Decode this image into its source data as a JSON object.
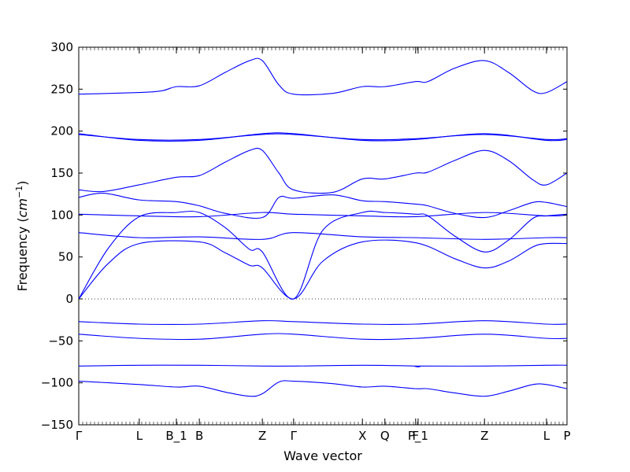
{
  "chart_data": {
    "type": "line",
    "xlabel": "Wave vector",
    "ylabel": "Frequency (cm⁻¹)",
    "ylabel_parts": {
      "prefix": "Frequency (",
      "base": "cm",
      "sup": "−1",
      "suffix": ")"
    },
    "ylim": [
      -150,
      300
    ],
    "xlim": [
      0,
      1
    ],
    "yticks": [
      300,
      250,
      200,
      150,
      100,
      50,
      0,
      -50,
      -100,
      -150
    ],
    "ytick_labels": [
      "300",
      "250",
      "200",
      "150",
      "100",
      "50",
      "0",
      "−50",
      "−100",
      "−150"
    ],
    "xticks": [
      {
        "label": "Γ",
        "x": 0.0
      },
      {
        "label": "L",
        "x": 0.124
      },
      {
        "label": "B_1",
        "x": 0.2
      },
      {
        "label": "B",
        "x": 0.247
      },
      {
        "label": "Z",
        "x": 0.376
      },
      {
        "label": "Γ",
        "x": 0.44
      },
      {
        "label": "X",
        "x": 0.581
      },
      {
        "label": "Q",
        "x": 0.627
      },
      {
        "label": "F",
        "x": 0.69
      },
      {
        "label": "P_1",
        "x": 0.695
      },
      {
        "label": "Z",
        "x": 0.831
      },
      {
        "label": "L",
        "x": 0.958
      },
      {
        "label": "P",
        "x": 1.0
      }
    ],
    "zero_line": true,
    "line_color": "#0000ff",
    "series": [
      {
        "points": [
          [
            0,
            244
          ],
          [
            0.124,
            246
          ],
          [
            0.17,
            248
          ],
          [
            0.2,
            253
          ],
          [
            0.247,
            254
          ],
          [
            0.3,
            270
          ],
          [
            0.35,
            284
          ],
          [
            0.376,
            284
          ],
          [
            0.41,
            255
          ],
          [
            0.44,
            244
          ],
          [
            0.52,
            245
          ],
          [
            0.581,
            253
          ],
          [
            0.627,
            253
          ],
          [
            0.69,
            259
          ],
          [
            0.715,
            259
          ],
          [
            0.77,
            275
          ],
          [
            0.831,
            284
          ],
          [
            0.88,
            270
          ],
          [
            0.93,
            248
          ],
          [
            0.958,
            246
          ],
          [
            1.0,
            259
          ]
        ]
      },
      {
        "points": [
          [
            0,
            197
          ],
          [
            0.124,
            189
          ],
          [
            0.247,
            189
          ],
          [
            0.376,
            197
          ],
          [
            0.44,
            197
          ],
          [
            0.581,
            189
          ],
          [
            0.69,
            190
          ],
          [
            0.831,
            197
          ],
          [
            0.958,
            189
          ],
          [
            1.0,
            190
          ]
        ]
      },
      {
        "points": [
          [
            0,
            196
          ],
          [
            0.124,
            190
          ],
          [
            0.247,
            190
          ],
          [
            0.376,
            196
          ],
          [
            0.44,
            196
          ],
          [
            0.581,
            190
          ],
          [
            0.69,
            191
          ],
          [
            0.831,
            196
          ],
          [
            0.958,
            190
          ],
          [
            1.0,
            191
          ]
        ]
      },
      {
        "points": [
          [
            0,
            130
          ],
          [
            0.05,
            128
          ],
          [
            0.124,
            136
          ],
          [
            0.2,
            145
          ],
          [
            0.247,
            147
          ],
          [
            0.3,
            163
          ],
          [
            0.35,
            177
          ],
          [
            0.376,
            177
          ],
          [
            0.41,
            150
          ],
          [
            0.44,
            130
          ],
          [
            0.52,
            127
          ],
          [
            0.581,
            143
          ],
          [
            0.627,
            143
          ],
          [
            0.69,
            150
          ],
          [
            0.715,
            151
          ],
          [
            0.77,
            165
          ],
          [
            0.831,
            177
          ],
          [
            0.88,
            165
          ],
          [
            0.93,
            142
          ],
          [
            0.958,
            136
          ],
          [
            1.0,
            150
          ]
        ]
      },
      {
        "points": [
          [
            0,
            121
          ],
          [
            0.05,
            126
          ],
          [
            0.124,
            118
          ],
          [
            0.2,
            116
          ],
          [
            0.247,
            111
          ],
          [
            0.3,
            102
          ],
          [
            0.376,
            97
          ],
          [
            0.41,
            121
          ],
          [
            0.44,
            120
          ],
          [
            0.52,
            124
          ],
          [
            0.581,
            117
          ],
          [
            0.627,
            116
          ],
          [
            0.69,
            113
          ],
          [
            0.715,
            111
          ],
          [
            0.77,
            102
          ],
          [
            0.831,
            97
          ],
          [
            0.88,
            105
          ],
          [
            0.93,
            115
          ],
          [
            0.958,
            115
          ],
          [
            1.0,
            110
          ]
        ]
      },
      {
        "points": [
          [
            0,
            0
          ],
          [
            0.06,
            60
          ],
          [
            0.124,
            98
          ],
          [
            0.2,
            103
          ],
          [
            0.247,
            103
          ],
          [
            0.3,
            85
          ],
          [
            0.35,
            59
          ],
          [
            0.376,
            56
          ],
          [
            0.44,
            0
          ],
          [
            0.5,
            82
          ],
          [
            0.581,
            103
          ],
          [
            0.627,
            103
          ],
          [
            0.69,
            101
          ],
          [
            0.715,
            99
          ],
          [
            0.77,
            75
          ],
          [
            0.831,
            56
          ],
          [
            0.88,
            70
          ],
          [
            0.93,
            96
          ],
          [
            0.958,
            99
          ],
          [
            1.0,
            101
          ]
        ]
      },
      {
        "points": [
          [
            0,
            101
          ],
          [
            0.124,
            99
          ],
          [
            0.247,
            98
          ],
          [
            0.376,
            103
          ],
          [
            0.44,
            101
          ],
          [
            0.581,
            99
          ],
          [
            0.69,
            98
          ],
          [
            0.831,
            103
          ],
          [
            0.958,
            99
          ],
          [
            1.0,
            100
          ]
        ]
      },
      {
        "points": [
          [
            0,
            0
          ],
          [
            0.06,
            42
          ],
          [
            0.124,
            66
          ],
          [
            0.247,
            68
          ],
          [
            0.3,
            55
          ],
          [
            0.35,
            40
          ],
          [
            0.376,
            37
          ],
          [
            0.44,
            0
          ],
          [
            0.5,
            45
          ],
          [
            0.581,
            68
          ],
          [
            0.69,
            67
          ],
          [
            0.77,
            48
          ],
          [
            0.831,
            37
          ],
          [
            0.88,
            45
          ],
          [
            0.93,
            62
          ],
          [
            0.958,
            66
          ],
          [
            1.0,
            66
          ]
        ]
      },
      {
        "points": [
          [
            0,
            79
          ],
          [
            0.124,
            73
          ],
          [
            0.247,
            74
          ],
          [
            0.376,
            71
          ],
          [
            0.44,
            79
          ],
          [
            0.581,
            74
          ],
          [
            0.69,
            73
          ],
          [
            0.831,
            71
          ],
          [
            0.958,
            73
          ],
          [
            1.0,
            73
          ]
        ]
      },
      {
        "points": [
          [
            0,
            -27
          ],
          [
            0.124,
            -30
          ],
          [
            0.247,
            -30
          ],
          [
            0.376,
            -26
          ],
          [
            0.44,
            -27
          ],
          [
            0.581,
            -30
          ],
          [
            0.69,
            -30
          ],
          [
            0.831,
            -26
          ],
          [
            0.958,
            -30
          ],
          [
            1.0,
            -30
          ]
        ]
      },
      {
        "points": [
          [
            0,
            -42
          ],
          [
            0.124,
            -47
          ],
          [
            0.247,
            -48
          ],
          [
            0.376,
            -42
          ],
          [
            0.44,
            -42
          ],
          [
            0.581,
            -48
          ],
          [
            0.69,
            -47
          ],
          [
            0.831,
            -42
          ],
          [
            0.958,
            -47
          ],
          [
            1.0,
            -47
          ]
        ]
      },
      {
        "points": [
          [
            0,
            -80
          ],
          [
            0.124,
            -79
          ],
          [
            0.247,
            -79
          ],
          [
            0.376,
            -80
          ],
          [
            0.44,
            -80
          ],
          [
            0.581,
            -79
          ],
          [
            0.69,
            -80
          ],
          [
            0.695,
            -81
          ],
          [
            0.7,
            -80
          ],
          [
            0.831,
            -80
          ],
          [
            0.958,
            -79
          ],
          [
            1.0,
            -79
          ]
        ]
      },
      {
        "points": [
          [
            0,
            -98
          ],
          [
            0.124,
            -102
          ],
          [
            0.2,
            -105
          ],
          [
            0.247,
            -104
          ],
          [
            0.3,
            -111
          ],
          [
            0.35,
            -116
          ],
          [
            0.376,
            -113
          ],
          [
            0.41,
            -99
          ],
          [
            0.44,
            -98
          ],
          [
            0.52,
            -101
          ],
          [
            0.581,
            -105
          ],
          [
            0.627,
            -104
          ],
          [
            0.69,
            -107
          ],
          [
            0.715,
            -107
          ],
          [
            0.77,
            -112
          ],
          [
            0.831,
            -116
          ],
          [
            0.88,
            -110
          ],
          [
            0.93,
            -102
          ],
          [
            0.958,
            -102
          ],
          [
            1.0,
            -107
          ]
        ]
      }
    ]
  }
}
